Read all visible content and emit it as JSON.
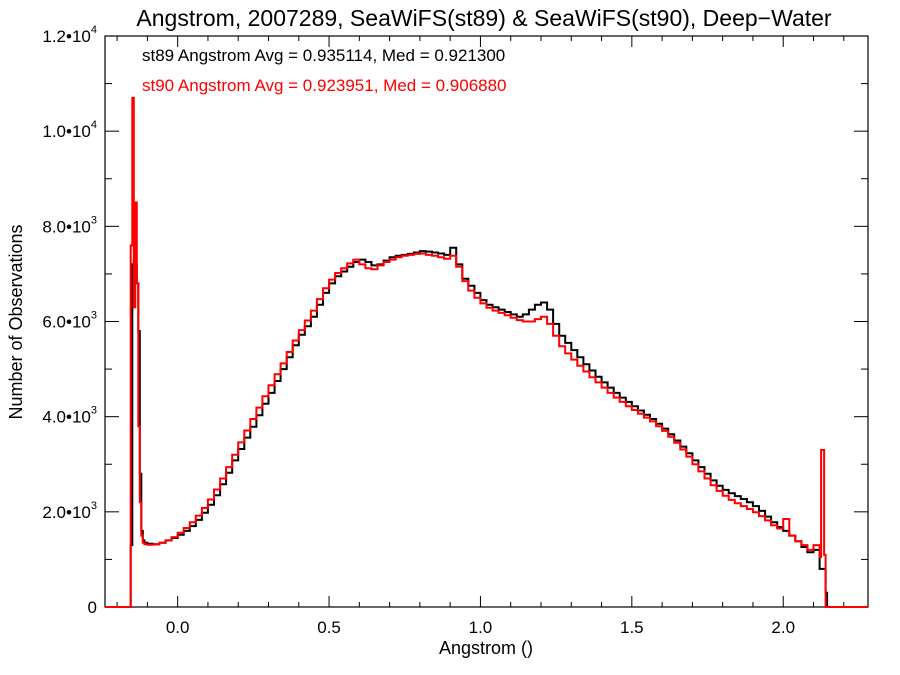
{
  "chart_data": {
    "type": "line",
    "step": true,
    "title": "Angstrom, 2007289, SeaWiFS(st89) & SeaWiFS(st90), Deep−Water",
    "xlabel": "Angstrom ()",
    "ylabel": "Number of Observations",
    "xlim": [
      -0.24,
      2.28
    ],
    "ylim": [
      0,
      12000
    ],
    "x_ticks": [
      {
        "value": 0.0,
        "label": "0.0"
      },
      {
        "value": 0.5,
        "label": "0.5"
      },
      {
        "value": 1.0,
        "label": "1.0"
      },
      {
        "value": 1.5,
        "label": "1.5"
      },
      {
        "value": 2.0,
        "label": "2.0"
      }
    ],
    "y_ticks": [
      {
        "value": 0,
        "mant": "0",
        "exp": ""
      },
      {
        "value": 2000,
        "mant": "2.0•10",
        "exp": "3"
      },
      {
        "value": 4000,
        "mant": "4.0•10",
        "exp": "3"
      },
      {
        "value": 6000,
        "mant": "6.0•10",
        "exp": "3"
      },
      {
        "value": 8000,
        "mant": "8.0•10",
        "exp": "3"
      },
      {
        "value": 10000,
        "mant": "1.0•10",
        "exp": "4"
      },
      {
        "value": 12000,
        "mant": "1.2•10",
        "exp": "4"
      }
    ],
    "legend_position": "top-left",
    "grid": false,
    "series": [
      {
        "name": "st89",
        "legend": "st89 Angstrom Avg = 0.935114, Med = 0.921300",
        "color": "#000000",
        "points": [
          [
            -0.24,
            0
          ],
          [
            -0.16,
            0
          ],
          [
            -0.155,
            1300
          ],
          [
            -0.15,
            7200
          ],
          [
            -0.145,
            7300
          ],
          [
            -0.14,
            7200
          ],
          [
            -0.135,
            6800
          ],
          [
            -0.13,
            5800
          ],
          [
            -0.125,
            2800
          ],
          [
            -0.12,
            1600
          ],
          [
            -0.115,
            1400
          ],
          [
            -0.11,
            1350
          ],
          [
            -0.1,
            1330
          ],
          [
            -0.08,
            1320
          ],
          [
            -0.06,
            1350
          ],
          [
            -0.04,
            1400
          ],
          [
            -0.02,
            1450
          ],
          [
            0.0,
            1520
          ],
          [
            0.02,
            1600
          ],
          [
            0.04,
            1700
          ],
          [
            0.06,
            1830
          ],
          [
            0.08,
            1980
          ],
          [
            0.1,
            2150
          ],
          [
            0.12,
            2350
          ],
          [
            0.14,
            2580
          ],
          [
            0.16,
            2820
          ],
          [
            0.18,
            3080
          ],
          [
            0.2,
            3320
          ],
          [
            0.22,
            3560
          ],
          [
            0.24,
            3790
          ],
          [
            0.26,
            4030
          ],
          [
            0.28,
            4270
          ],
          [
            0.3,
            4500
          ],
          [
            0.32,
            4750
          ],
          [
            0.34,
            5000
          ],
          [
            0.36,
            5250
          ],
          [
            0.38,
            5500
          ],
          [
            0.4,
            5720
          ],
          [
            0.42,
            5900
          ],
          [
            0.44,
            6100
          ],
          [
            0.46,
            6350
          ],
          [
            0.48,
            6600
          ],
          [
            0.5,
            6800
          ],
          [
            0.52,
            6950
          ],
          [
            0.54,
            7050
          ],
          [
            0.56,
            7150
          ],
          [
            0.58,
            7250
          ],
          [
            0.6,
            7300
          ],
          [
            0.62,
            7250
          ],
          [
            0.64,
            7180
          ],
          [
            0.66,
            7200
          ],
          [
            0.68,
            7280
          ],
          [
            0.7,
            7350
          ],
          [
            0.72,
            7380
          ],
          [
            0.74,
            7400
          ],
          [
            0.76,
            7420
          ],
          [
            0.78,
            7450
          ],
          [
            0.8,
            7480
          ],
          [
            0.82,
            7470
          ],
          [
            0.84,
            7450
          ],
          [
            0.86,
            7430
          ],
          [
            0.88,
            7400
          ],
          [
            0.9,
            7550
          ],
          [
            0.92,
            7200
          ],
          [
            0.94,
            6900
          ],
          [
            0.96,
            6750
          ],
          [
            0.98,
            6600
          ],
          [
            1.0,
            6450
          ],
          [
            1.02,
            6350
          ],
          [
            1.04,
            6300
          ],
          [
            1.06,
            6250
          ],
          [
            1.08,
            6200
          ],
          [
            1.1,
            6150
          ],
          [
            1.12,
            6100
          ],
          [
            1.14,
            6150
          ],
          [
            1.16,
            6250
          ],
          [
            1.18,
            6350
          ],
          [
            1.2,
            6400
          ],
          [
            1.22,
            6250
          ],
          [
            1.24,
            5950
          ],
          [
            1.26,
            5700
          ],
          [
            1.28,
            5550
          ],
          [
            1.3,
            5400
          ],
          [
            1.32,
            5250
          ],
          [
            1.34,
            5100
          ],
          [
            1.36,
            4970
          ],
          [
            1.38,
            4840
          ],
          [
            1.4,
            4720
          ],
          [
            1.42,
            4610
          ],
          [
            1.44,
            4500
          ],
          [
            1.46,
            4400
          ],
          [
            1.48,
            4310
          ],
          [
            1.5,
            4220
          ],
          [
            1.52,
            4130
          ],
          [
            1.54,
            4040
          ],
          [
            1.56,
            3950
          ],
          [
            1.58,
            3850
          ],
          [
            1.6,
            3750
          ],
          [
            1.62,
            3630
          ],
          [
            1.64,
            3500
          ],
          [
            1.66,
            3370
          ],
          [
            1.68,
            3230
          ],
          [
            1.7,
            3080
          ],
          [
            1.72,
            2940
          ],
          [
            1.74,
            2800
          ],
          [
            1.76,
            2660
          ],
          [
            1.78,
            2550
          ],
          [
            1.8,
            2460
          ],
          [
            1.82,
            2390
          ],
          [
            1.84,
            2330
          ],
          [
            1.86,
            2270
          ],
          [
            1.88,
            2200
          ],
          [
            1.9,
            2120
          ],
          [
            1.92,
            2020
          ],
          [
            1.94,
            1900
          ],
          [
            1.96,
            1780
          ],
          [
            1.98,
            1680
          ],
          [
            2.0,
            1600
          ],
          [
            2.02,
            1500
          ],
          [
            2.04,
            1380
          ],
          [
            2.06,
            1260
          ],
          [
            2.08,
            1150
          ],
          [
            2.1,
            1200
          ],
          [
            2.12,
            800
          ],
          [
            2.14,
            300
          ],
          [
            2.145,
            0
          ],
          [
            2.28,
            0
          ]
        ]
      },
      {
        "name": "st90",
        "legend": "st90 Angstrom Avg = 0.923951, Med = 0.906880",
        "color": "#ff0000",
        "points": [
          [
            -0.24,
            0
          ],
          [
            -0.16,
            0
          ],
          [
            -0.155,
            7600
          ],
          [
            -0.15,
            10700
          ],
          [
            -0.145,
            6300
          ],
          [
            -0.14,
            8500
          ],
          [
            -0.135,
            6800
          ],
          [
            -0.13,
            3800
          ],
          [
            -0.125,
            2200
          ],
          [
            -0.12,
            1500
          ],
          [
            -0.115,
            1350
          ],
          [
            -0.11,
            1320
          ],
          [
            -0.1,
            1310
          ],
          [
            -0.08,
            1320
          ],
          [
            -0.06,
            1350
          ],
          [
            -0.04,
            1400
          ],
          [
            -0.02,
            1470
          ],
          [
            0.0,
            1560
          ],
          [
            0.02,
            1660
          ],
          [
            0.04,
            1780
          ],
          [
            0.06,
            1920
          ],
          [
            0.08,
            2080
          ],
          [
            0.1,
            2260
          ],
          [
            0.12,
            2470
          ],
          [
            0.14,
            2700
          ],
          [
            0.16,
            2940
          ],
          [
            0.18,
            3200
          ],
          [
            0.2,
            3460
          ],
          [
            0.22,
            3710
          ],
          [
            0.24,
            3950
          ],
          [
            0.26,
            4190
          ],
          [
            0.28,
            4430
          ],
          [
            0.3,
            4660
          ],
          [
            0.32,
            4890
          ],
          [
            0.34,
            5120
          ],
          [
            0.36,
            5360
          ],
          [
            0.38,
            5600
          ],
          [
            0.4,
            5820
          ],
          [
            0.42,
            6020
          ],
          [
            0.44,
            6230
          ],
          [
            0.46,
            6470
          ],
          [
            0.48,
            6700
          ],
          [
            0.5,
            6880
          ],
          [
            0.52,
            7020
          ],
          [
            0.54,
            7120
          ],
          [
            0.56,
            7220
          ],
          [
            0.58,
            7300
          ],
          [
            0.6,
            7200
          ],
          [
            0.62,
            7120
          ],
          [
            0.64,
            7100
          ],
          [
            0.66,
            7180
          ],
          [
            0.68,
            7250
          ],
          [
            0.7,
            7300
          ],
          [
            0.72,
            7350
          ],
          [
            0.74,
            7380
          ],
          [
            0.76,
            7400
          ],
          [
            0.78,
            7420
          ],
          [
            0.8,
            7430
          ],
          [
            0.82,
            7400
          ],
          [
            0.84,
            7380
          ],
          [
            0.86,
            7350
          ],
          [
            0.88,
            7320
          ],
          [
            0.9,
            7380
          ],
          [
            0.92,
            7150
          ],
          [
            0.94,
            6850
          ],
          [
            0.96,
            6650
          ],
          [
            0.98,
            6500
          ],
          [
            1.0,
            6380
          ],
          [
            1.02,
            6290
          ],
          [
            1.04,
            6230
          ],
          [
            1.06,
            6180
          ],
          [
            1.08,
            6130
          ],
          [
            1.1,
            6080
          ],
          [
            1.12,
            6030
          ],
          [
            1.14,
            6000
          ],
          [
            1.16,
            6000
          ],
          [
            1.18,
            6050
          ],
          [
            1.2,
            6100
          ],
          [
            1.22,
            5950
          ],
          [
            1.24,
            5700
          ],
          [
            1.26,
            5480
          ],
          [
            1.28,
            5330
          ],
          [
            1.3,
            5200
          ],
          [
            1.32,
            5070
          ],
          [
            1.34,
            4950
          ],
          [
            1.36,
            4830
          ],
          [
            1.38,
            4720
          ],
          [
            1.4,
            4610
          ],
          [
            1.42,
            4500
          ],
          [
            1.44,
            4400
          ],
          [
            1.46,
            4310
          ],
          [
            1.48,
            4220
          ],
          [
            1.5,
            4140
          ],
          [
            1.52,
            4060
          ],
          [
            1.54,
            3980
          ],
          [
            1.56,
            3900
          ],
          [
            1.58,
            3800
          ],
          [
            1.6,
            3700
          ],
          [
            1.62,
            3580
          ],
          [
            1.64,
            3450
          ],
          [
            1.66,
            3310
          ],
          [
            1.68,
            3160
          ],
          [
            1.7,
            3000
          ],
          [
            1.72,
            2850
          ],
          [
            1.74,
            2700
          ],
          [
            1.76,
            2560
          ],
          [
            1.78,
            2440
          ],
          [
            1.8,
            2340
          ],
          [
            1.82,
            2250
          ],
          [
            1.84,
            2180
          ],
          [
            1.86,
            2120
          ],
          [
            1.88,
            2060
          ],
          [
            1.9,
            1990
          ],
          [
            1.92,
            1910
          ],
          [
            1.94,
            1820
          ],
          [
            1.96,
            1720
          ],
          [
            1.98,
            1650
          ],
          [
            2.0,
            1850
          ],
          [
            2.02,
            1500
          ],
          [
            2.04,
            1380
          ],
          [
            2.06,
            1300
          ],
          [
            2.08,
            1200
          ],
          [
            2.1,
            1300
          ],
          [
            2.12,
            1050
          ],
          [
            2.125,
            3300
          ],
          [
            2.135,
            1100
          ],
          [
            2.14,
            0
          ],
          [
            2.28,
            0
          ]
        ]
      }
    ]
  }
}
